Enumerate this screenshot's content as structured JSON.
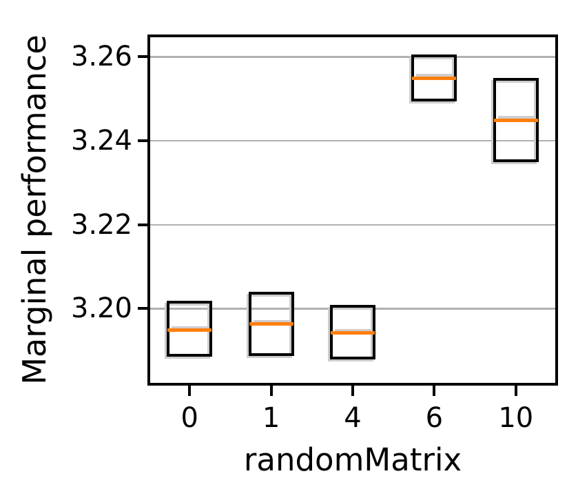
{
  "figure": {
    "background": "#ffffff"
  },
  "chart_data": {
    "type": "box",
    "title": "",
    "xlabel": "randomMatrix",
    "ylabel": "Marginal performance",
    "categories": [
      "0",
      "1",
      "4",
      "6",
      "10"
    ],
    "boxes": [
      {
        "category": "0",
        "q1": 3.1889,
        "median": 3.1949,
        "q3": 3.2015
      },
      {
        "category": "1",
        "q1": 3.1891,
        "median": 3.1963,
        "q3": 3.2037
      },
      {
        "category": "4",
        "q1": 3.1882,
        "median": 3.1942,
        "q3": 3.2006
      },
      {
        "category": "6",
        "q1": 3.2497,
        "median": 3.2549,
        "q3": 3.2602
      },
      {
        "category": "10",
        "q1": 3.2353,
        "median": 3.2449,
        "q3": 3.2547
      }
    ],
    "whiskers_shown": false,
    "fliers_shown": false,
    "y_ticks": [
      {
        "value": 3.2,
        "label": "3.20"
      },
      {
        "value": 3.22,
        "label": "3.22"
      },
      {
        "value": 3.24,
        "label": "3.24"
      },
      {
        "value": 3.26,
        "label": "3.26"
      }
    ],
    "ylim": [
      3.182,
      3.265
    ],
    "grid": "horizontal",
    "legend_position": "none",
    "colors": {
      "box_edge": "#000000",
      "median": "#ff7f0e",
      "grid": "#b0b0b0",
      "ghost": "#cdcdcd",
      "text": "#000000",
      "background": "#ffffff"
    }
  }
}
